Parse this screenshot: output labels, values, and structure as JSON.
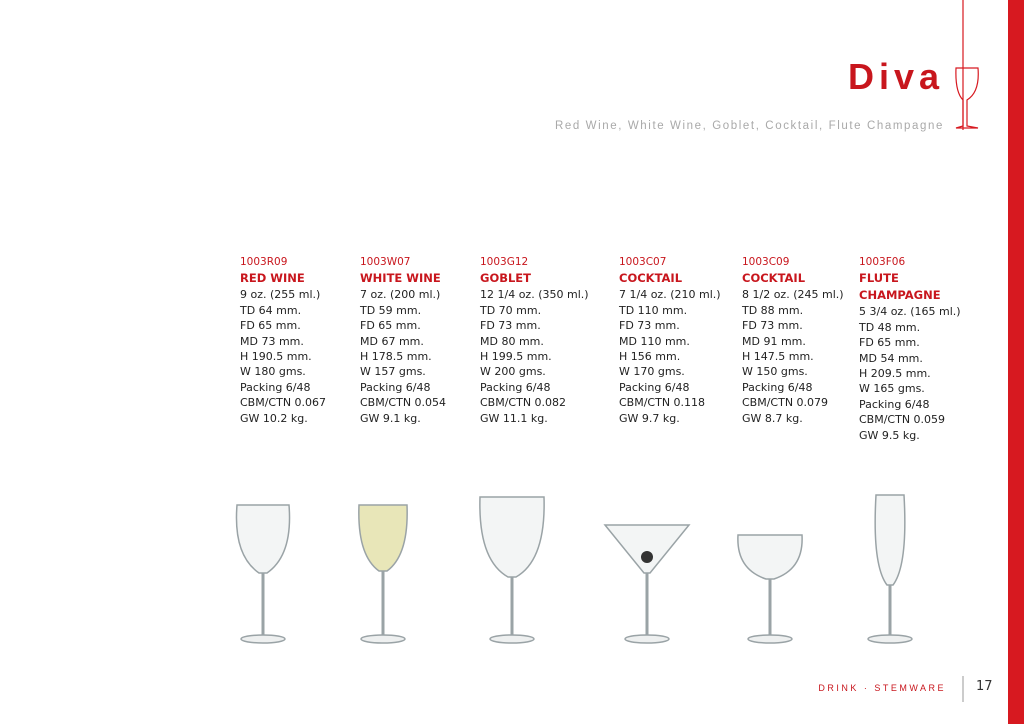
{
  "header": {
    "title": "Diva",
    "subtitle": "Red Wine, White Wine, Goblet, Cocktail, Flute Champagne"
  },
  "products": [
    {
      "code": "1003R09",
      "name": "RED WINE",
      "specs": [
        "9 oz. (255 ml.)",
        "TD 64 mm.",
        "FD 65 mm.",
        "MD 73 mm.",
        "H 190.5 mm.",
        "W 180 gms.",
        "Packing 6/48",
        "CBM/CTN 0.067",
        "GW 10.2 kg."
      ]
    },
    {
      "code": "1003W07",
      "name": "WHITE WINE",
      "specs": [
        "7 oz. (200 ml.)",
        "TD 59 mm.",
        "FD 65 mm.",
        "MD 67 mm.",
        "H 178.5 mm.",
        "W 157 gms.",
        "Packing 6/48",
        "CBM/CTN 0.054",
        "GW 9.1 kg."
      ]
    },
    {
      "code": "1003G12",
      "name": "GOBLET",
      "specs": [
        "12 1/4 oz. (350 ml.)",
        "TD 70 mm.",
        "FD 73 mm.",
        "MD 80 mm.",
        "H 199.5 mm.",
        "W 200 gms.",
        "Packing 6/48",
        "CBM/CTN 0.082",
        "GW 11.1 kg."
      ]
    },
    {
      "code": "1003C07",
      "name": "COCKTAIL",
      "specs": [
        "7 1/4 oz. (210 ml.)",
        "TD 110 mm.",
        "FD 73 mm.",
        "MD 110 mm.",
        "H 156 mm.",
        "W 170 gms.",
        "Packing 6/48",
        "CBM/CTN 0.118",
        "GW 9.7 kg."
      ]
    },
    {
      "code": "1003C09",
      "name": "COCKTAIL",
      "specs": [
        "8 1/2 oz. (245 ml.)",
        "TD 88 mm.",
        "FD 73 mm.",
        "MD 91 mm.",
        "H 147.5 mm.",
        "W 150 gms.",
        "Packing 6/48",
        "CBM/CTN 0.079",
        "GW 8.7 kg."
      ]
    },
    {
      "code": "1003F06",
      "name": "FLUTE CHAMPAGNE",
      "specs": [
        "5 3/4 oz. (165 ml.)",
        "TD 48 mm.",
        "FD 65 mm.",
        "MD 54 mm.",
        "H 209.5 mm.",
        "W 165 gms.",
        "Packing 6/48",
        "CBM/CTN 0.059",
        "GW 9.5 kg."
      ]
    }
  ],
  "footer": {
    "section": "DRINK · STEMWARE",
    "page": "17"
  }
}
